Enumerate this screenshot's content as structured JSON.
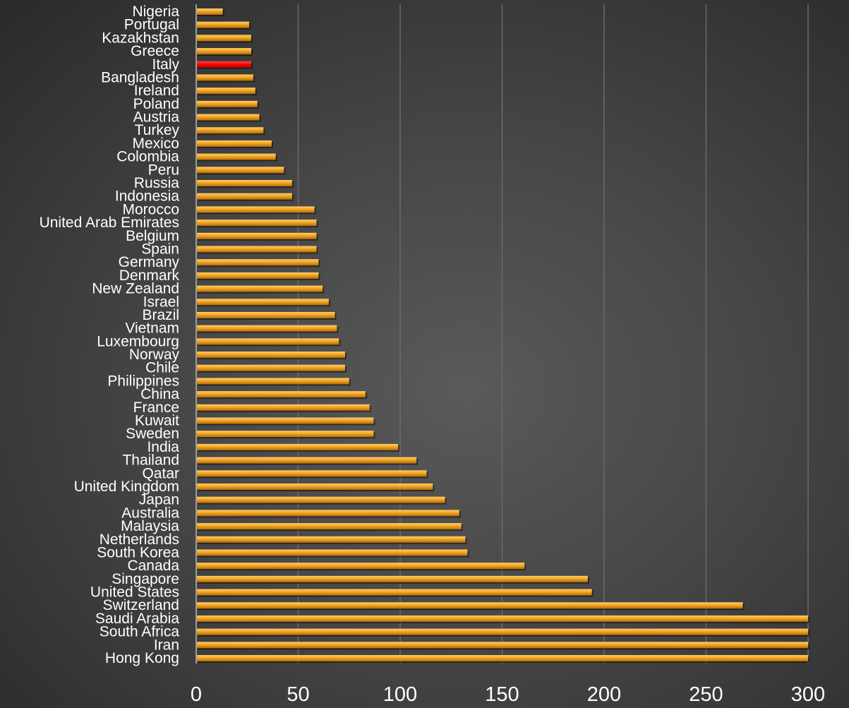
{
  "chart_data": {
    "type": "bar",
    "orientation": "horizontal",
    "title": "",
    "xlabel": "",
    "ylabel": "",
    "xlim": [
      0,
      300
    ],
    "x_ticks": [
      "0",
      "50",
      "100",
      "150",
      "200",
      "250",
      "300"
    ],
    "grid": "vertical",
    "legend": "none",
    "bar_color": "#f5a623",
    "highlight_color": "#ff0000",
    "highlight_category": "Italy",
    "categories": [
      "Nigeria",
      "Portugal",
      "Kazakhstan",
      "Greece",
      "Italy",
      "Bangladesh",
      "Ireland",
      "Poland",
      "Austria",
      "Turkey",
      "Mexico",
      "Colombia",
      "Peru",
      "Russia",
      "Indonesia",
      "Morocco",
      "United Arab Emirates",
      "Belgium",
      "Spain",
      "Germany",
      "Denmark",
      "New Zealand",
      "Israel",
      "Brazil",
      "Vietnam",
      "Luxembourg",
      "Norway",
      "Chile",
      "Philippines",
      "China",
      "France",
      "Kuwait",
      "Sweden",
      "India",
      "Thailand",
      "Qatar",
      "United Kingdom",
      "Japan",
      "Australia",
      "Malaysia",
      "Netherlands",
      "South Korea",
      "Canada",
      "Singapore",
      "United States",
      "Switzerland",
      "Saudi Arabia",
      "South Africa",
      "Iran",
      "Hong Kong"
    ],
    "values": [
      13,
      26,
      27,
      27,
      27,
      28,
      29,
      30,
      31,
      33,
      37,
      39,
      43,
      47,
      47,
      58,
      59,
      59,
      59,
      60,
      60,
      62,
      65,
      68,
      69,
      70,
      73,
      73,
      75,
      83,
      85,
      87,
      87,
      99,
      108,
      113,
      116,
      122,
      129,
      130,
      132,
      133,
      161,
      192,
      194,
      268,
      300,
      300,
      300,
      300
    ]
  }
}
